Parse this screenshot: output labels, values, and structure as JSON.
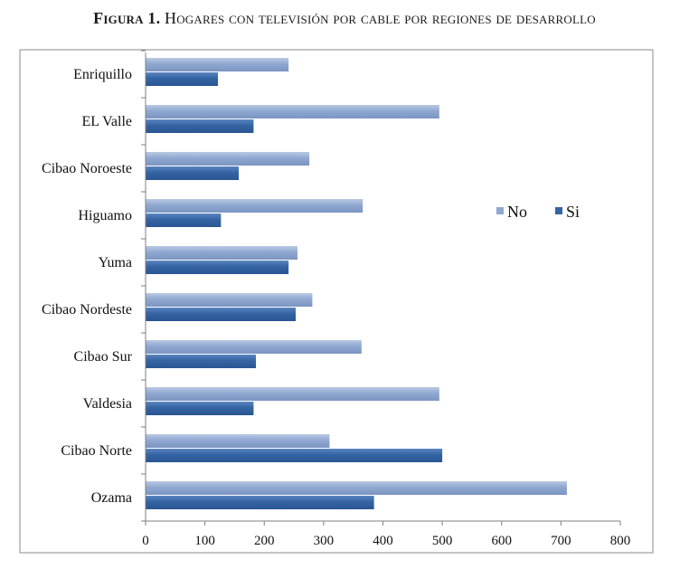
{
  "figure": {
    "label": "Figura 1.",
    "title": "Hogares con televisión por cable por regiones de desarrollo"
  },
  "colors": {
    "no": "#8FA8D0",
    "si": "#3464A3",
    "frame": "#888888",
    "axis": "#7f7f7f"
  },
  "chart_data": {
    "type": "bar",
    "orientation": "horizontal",
    "categories": [
      "Ozama",
      "Cibao Norte",
      "Valdesia",
      "Cibao Sur",
      "Cibao Nordeste",
      "Yuma",
      "Higuamo",
      "Cibao Noroeste",
      "EL Valle",
      "Enriquillo"
    ],
    "series": [
      {
        "name": "Si",
        "values": [
          385,
          500,
          182,
          186,
          253,
          241,
          127,
          157,
          182,
          122
        ]
      },
      {
        "name": "No",
        "values": [
          710,
          310,
          495,
          364,
          281,
          256,
          366,
          276,
          495,
          241
        ]
      }
    ],
    "xlim": [
      0,
      800
    ],
    "xticks": [
      0,
      100,
      200,
      300,
      400,
      500,
      600,
      700,
      800
    ],
    "grid": false,
    "legend": [
      "No",
      "Si"
    ],
    "legend_position": "right"
  }
}
